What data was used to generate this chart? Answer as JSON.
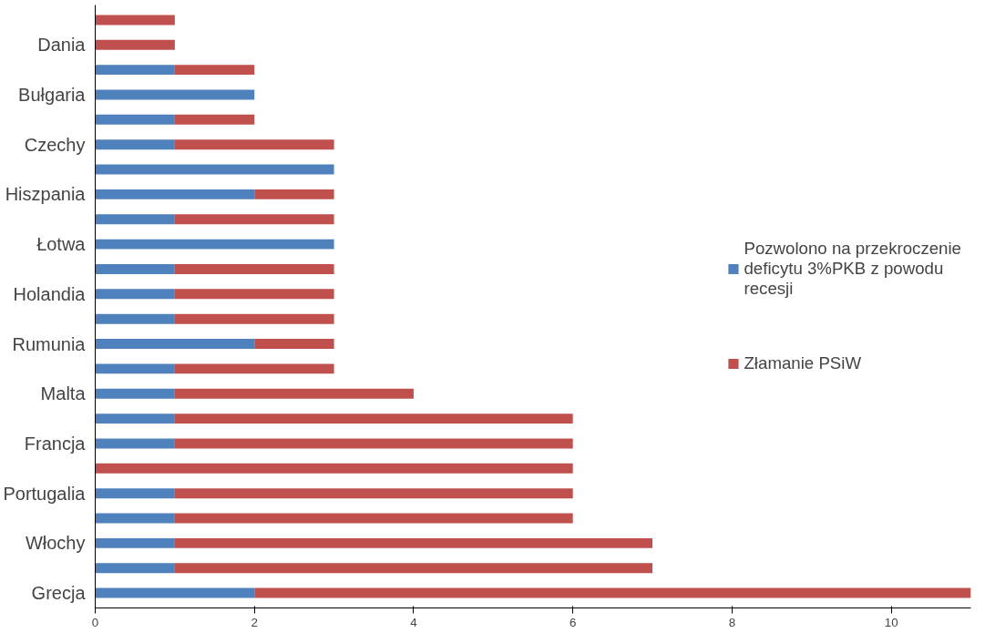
{
  "chart_data": {
    "type": "bar",
    "orientation": "horizontal",
    "stacked": true,
    "categories": [
      null,
      "Dania",
      null,
      "Bułgaria",
      null,
      "Czechy",
      null,
      "Hiszpania",
      null,
      "Łotwa",
      null,
      "Holandia",
      null,
      "Rumunia",
      null,
      "Malta",
      null,
      "Francja",
      null,
      "Portugalia",
      null,
      "Włochy",
      null,
      "Grecja"
    ],
    "series": [
      {
        "name": "Pozwolono na przekroczenie deficytu 3%PKB z powodu recesji",
        "color": "#4f81bd",
        "values": [
          0,
          0,
          1,
          2,
          1,
          1,
          3,
          2,
          1,
          3,
          1,
          1,
          1,
          2,
          1,
          1,
          1,
          1,
          0,
          1,
          1,
          1,
          1,
          2
        ]
      },
      {
        "name": "Złamanie PSiW",
        "color": "#c0504d",
        "values": [
          1,
          1,
          1,
          0,
          1,
          2,
          0,
          1,
          2,
          0,
          2,
          2,
          2,
          1,
          2,
          3,
          5,
          5,
          6,
          5,
          5,
          6,
          6,
          9
        ]
      }
    ],
    "xlim": [
      0,
      11
    ],
    "xticks": [
      0,
      2,
      4,
      6,
      8,
      10
    ],
    "grid": false,
    "legend": "right"
  }
}
